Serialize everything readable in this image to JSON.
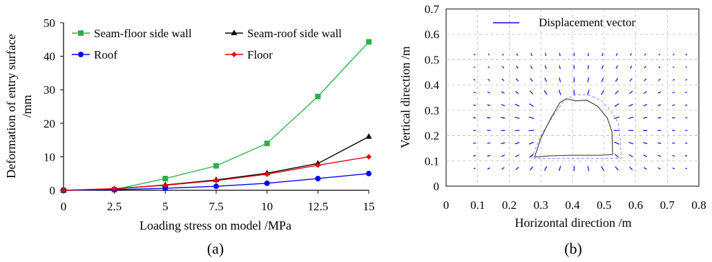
{
  "chart_data": [
    {
      "type": "line",
      "panel_label": "(a)",
      "xlabel": "Loading stress on model /MPa",
      "ylabel": [
        "Deformation of entry surface",
        "/mm"
      ],
      "xlim": [
        0,
        15
      ],
      "ylim": [
        0,
        50
      ],
      "xticks": [
        "0",
        "2.5",
        "5",
        "7.5",
        "10",
        "12.5",
        "15"
      ],
      "yticks": [
        "0",
        "10",
        "20",
        "30",
        "40",
        "50"
      ],
      "grid": false,
      "legend_position": "top-left",
      "x": [
        0,
        2.5,
        5,
        7.5,
        10,
        12.5,
        15
      ],
      "series": [
        {
          "name": "Seam-floor side wall",
          "color": "#2ab24a",
          "marker": "square",
          "values": [
            0,
            0.2,
            3.5,
            7.3,
            14,
            28,
            44.3
          ]
        },
        {
          "name": "Seam-roof side wall",
          "color": "#000000",
          "marker": "triangle",
          "values": [
            0,
            0.4,
            1.6,
            3.1,
            5.1,
            8,
            16
          ]
        },
        {
          "name": "Roof",
          "color": "#0000ff",
          "marker": "circle",
          "values": [
            0,
            0.2,
            0.6,
            1.2,
            2.1,
            3.5,
            5
          ]
        },
        {
          "name": "Floor",
          "color": "#e60000",
          "marker": "diamond",
          "values": [
            0,
            0.5,
            1.5,
            2.9,
            4.8,
            7.5,
            10
          ]
        }
      ]
    },
    {
      "type": "scatter",
      "panel_label": "(b)",
      "xlabel": "Horizontal direction /m",
      "ylabel": "Vertical direction /m",
      "xlim": [
        0,
        0.8
      ],
      "ylim": [
        0,
        0.7
      ],
      "xticks": [
        "0",
        "0.1",
        "0.2",
        "0.3",
        "0.4",
        "0.5",
        "0.6",
        "0.7",
        "0.8"
      ],
      "yticks": [
        "0",
        "0.1",
        "0.2",
        "0.3",
        "0.4",
        "0.5",
        "0.6",
        "0.7"
      ],
      "grid": "dashed",
      "legend_position": "top",
      "legend": "Displacement vector",
      "vector_color": "#0000ff",
      "grid_x": [
        0.09,
        0.135,
        0.18,
        0.225,
        0.27,
        0.315,
        0.36,
        0.405,
        0.45,
        0.495,
        0.54,
        0.585,
        0.63,
        0.675,
        0.72,
        0.76
      ],
      "grid_y": [
        0.07,
        0.12,
        0.17,
        0.22,
        0.27,
        0.32,
        0.37,
        0.42,
        0.47,
        0.52
      ],
      "entry_outline": [
        [
          0.28,
          0.115
        ],
        [
          0.3,
          0.19
        ],
        [
          0.33,
          0.265
        ],
        [
          0.36,
          0.33
        ],
        [
          0.38,
          0.345
        ],
        [
          0.41,
          0.337
        ],
        [
          0.445,
          0.34
        ],
        [
          0.48,
          0.315
        ],
        [
          0.51,
          0.27
        ],
        [
          0.525,
          0.215
        ],
        [
          0.527,
          0.125
        ],
        [
          0.49,
          0.122
        ],
        [
          0.4,
          0.122
        ],
        [
          0.33,
          0.12
        ],
        [
          0.28,
          0.115
        ]
      ],
      "deformed_outline": [
        [
          0.27,
          0.11
        ],
        [
          0.3,
          0.2
        ],
        [
          0.34,
          0.28
        ],
        [
          0.375,
          0.34
        ],
        [
          0.41,
          0.362
        ],
        [
          0.45,
          0.36
        ],
        [
          0.49,
          0.34
        ],
        [
          0.52,
          0.3
        ],
        [
          0.545,
          0.25
        ],
        [
          0.55,
          0.2
        ],
        [
          0.555,
          0.11
        ],
        [
          0.27,
          0.11
        ]
      ]
    }
  ]
}
